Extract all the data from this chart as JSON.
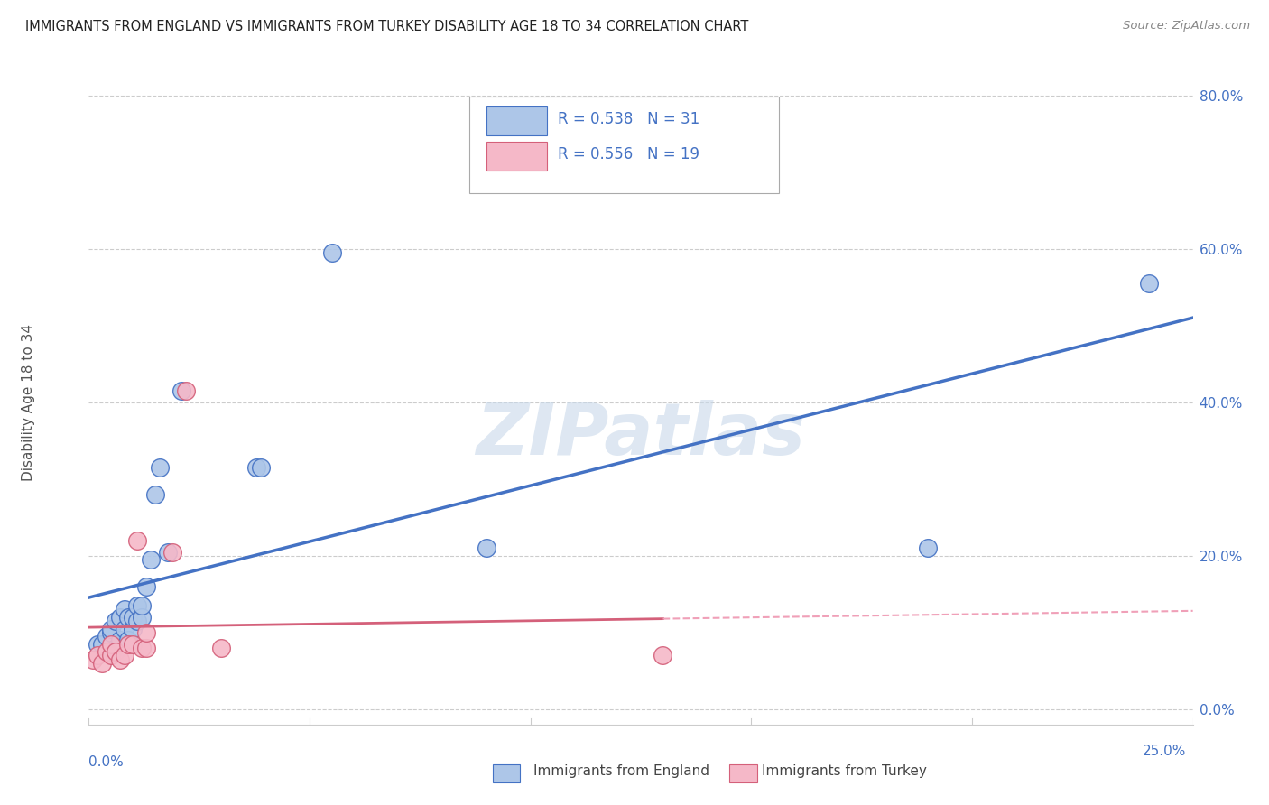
{
  "title": "IMMIGRANTS FROM ENGLAND VS IMMIGRANTS FROM TURKEY DISABILITY AGE 18 TO 34 CORRELATION CHART",
  "source": "Source: ZipAtlas.com",
  "ylabel": "Disability Age 18 to 34",
  "ytick_labels": [
    "0.0%",
    "20.0%",
    "40.0%",
    "60.0%",
    "80.0%"
  ],
  "ytick_vals": [
    0.0,
    0.2,
    0.4,
    0.6,
    0.8
  ],
  "xlim": [
    0.0,
    0.25
  ],
  "ylim": [
    -0.02,
    0.82
  ],
  "legend_england_R": "R = 0.538",
  "legend_england_N": "N = 31",
  "legend_turkey_R": "R = 0.556",
  "legend_turkey_N": "N = 19",
  "england_fill": "#adc6e8",
  "england_edge": "#4472c4",
  "turkey_fill": "#f5b8c8",
  "turkey_edge": "#d4607a",
  "england_line_color": "#4472c4",
  "turkey_line_solid": "#d4607a",
  "turkey_line_dash": "#f0a0b8",
  "watermark_color": "#c8d8ea",
  "grid_color": "#cccccc",
  "title_color": "#222222",
  "source_color": "#888888",
  "axis_label_color": "#555555",
  "tick_color": "#4472c4",
  "legend_label_color": "#4472c4",
  "scatter_size": 200,
  "england_x": [
    0.002,
    0.003,
    0.004,
    0.005,
    0.005,
    0.006,
    0.006,
    0.007,
    0.007,
    0.008,
    0.008,
    0.009,
    0.009,
    0.01,
    0.01,
    0.011,
    0.011,
    0.012,
    0.012,
    0.013,
    0.014,
    0.015,
    0.016,
    0.018,
    0.021,
    0.038,
    0.039,
    0.055,
    0.09,
    0.19,
    0.24
  ],
  "england_y": [
    0.085,
    0.085,
    0.095,
    0.1,
    0.105,
    0.08,
    0.115,
    0.09,
    0.12,
    0.105,
    0.13,
    0.09,
    0.12,
    0.105,
    0.12,
    0.115,
    0.135,
    0.12,
    0.135,
    0.16,
    0.195,
    0.28,
    0.315,
    0.205,
    0.415,
    0.315,
    0.315,
    0.595,
    0.21,
    0.21,
    0.555
  ],
  "turkey_x": [
    0.001,
    0.002,
    0.003,
    0.004,
    0.005,
    0.005,
    0.006,
    0.007,
    0.008,
    0.009,
    0.01,
    0.011,
    0.012,
    0.013,
    0.013,
    0.019,
    0.022,
    0.03,
    0.13
  ],
  "turkey_y": [
    0.065,
    0.07,
    0.06,
    0.075,
    0.07,
    0.085,
    0.075,
    0.065,
    0.07,
    0.085,
    0.085,
    0.22,
    0.08,
    0.08,
    0.1,
    0.205,
    0.415,
    0.08,
    0.07
  ],
  "bottom_legend_eng": "Immigrants from England",
  "bottom_legend_tur": "Immigrants from Turkey"
}
